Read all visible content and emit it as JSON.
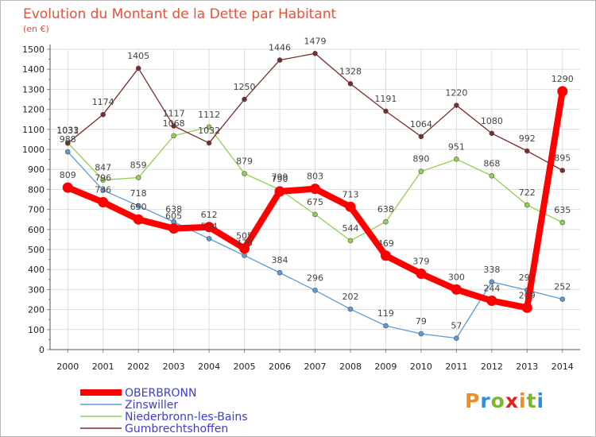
{
  "chart_data": {
    "type": "line",
    "title": "Evolution du Montant de la Dette par Habitant",
    "subtitle": "(en €)",
    "x": [
      "2000",
      "2001",
      "2002",
      "2003",
      "2004",
      "2005",
      "2006",
      "2007",
      "2008",
      "2009",
      "2010",
      "2011",
      "2012",
      "2013",
      "2014"
    ],
    "ylim": [
      0,
      1500
    ],
    "yticks": [
      0,
      100,
      200,
      300,
      400,
      500,
      600,
      700,
      800,
      900,
      1000,
      1100,
      1200,
      1300,
      1400,
      1500
    ],
    "grid": true,
    "legend_position": "bottom-left",
    "series": [
      {
        "name": "OBERBRONN",
        "color": "#ff0000",
        "values": [
          809,
          736,
          650,
          605,
          612,
          505,
          790,
          803,
          713,
          469,
          379,
          300,
          244,
          209,
          1290
        ]
      },
      {
        "name": "Zinswiller",
        "color": "#5b9bd5",
        "values": [
          988,
          796,
          718,
          638,
          554,
          470,
          384,
          296,
          202,
          119,
          79,
          57,
          338,
          297,
          252
        ]
      },
      {
        "name": "Niederbronn-les-Bains",
        "color": "#92d050",
        "values": [
          1033,
          847,
          859,
          1068,
          1112,
          879,
          799,
          675,
          544,
          638,
          890,
          951,
          868,
          722,
          635
        ]
      },
      {
        "name": "Gumbrechtshoffen",
        "color": "#7b2c2c",
        "values": [
          1031,
          1174,
          1405,
          1117,
          1032,
          1250,
          1446,
          1479,
          1328,
          1191,
          1064,
          1220,
          1080,
          992,
          895
        ]
      }
    ]
  },
  "logo": {
    "letters": [
      "P",
      "r",
      "o",
      "x",
      "i",
      "t",
      "i"
    ],
    "colors": [
      "#f28c1e",
      "#2e8fd6",
      "#79b929",
      "#e2231a",
      "#f28c1e",
      "#79b929",
      "#2e8fd6"
    ]
  }
}
